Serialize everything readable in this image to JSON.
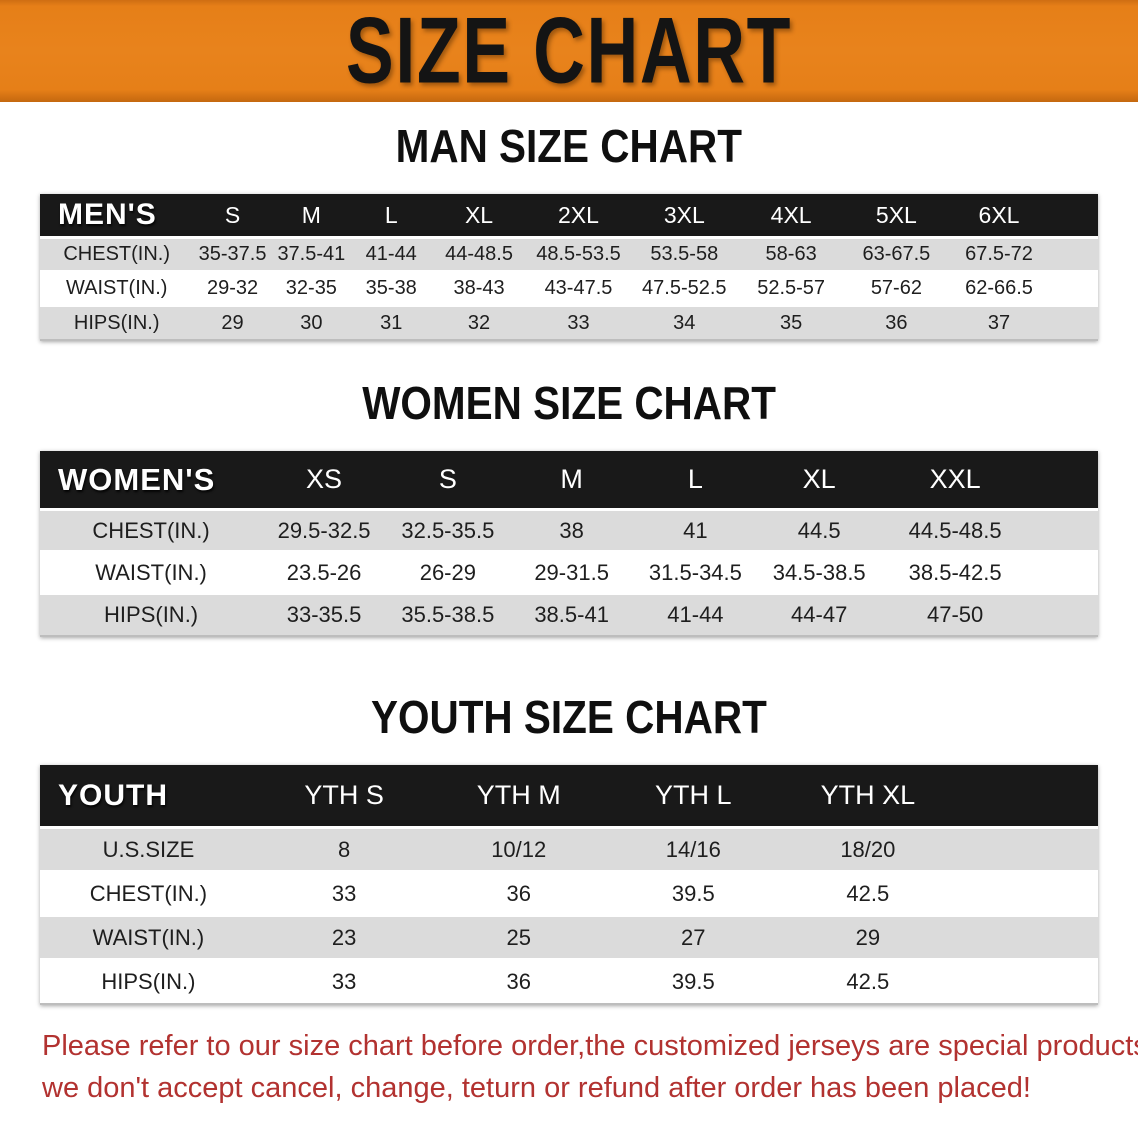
{
  "banner": {
    "title": "SIZE CHART"
  },
  "colors": {
    "banner_orange": "#E67F18",
    "table_header_black": "#191919",
    "row_stripe_gray": "#DBDBDB",
    "note_red": "#B23230"
  },
  "sections": [
    {
      "title": "MAN SIZE CHART",
      "header_label": "MEN'S",
      "columns": [
        "S",
        "M",
        "L",
        "XL",
        "2XL",
        "3XL",
        "4XL",
        "5XL",
        "6XL"
      ],
      "rows": [
        {
          "label": "CHEST(IN.)",
          "values": [
            "35-37.5",
            "37.5-41",
            "41-44",
            "44-48.5",
            "48.5-53.5",
            "53.5-58",
            "58-63",
            "63-67.5",
            "67.5-72"
          ]
        },
        {
          "label": "WAIST(IN.)",
          "values": [
            "29-32",
            "32-35",
            "35-38",
            "38-43",
            "43-47.5",
            "47.5-52.5",
            "52.5-57",
            "57-62",
            "62-66.5"
          ]
        },
        {
          "label": "HIPS(IN.)",
          "values": [
            "29",
            "30",
            "31",
            "32",
            "33",
            "34",
            "35",
            "36",
            "37"
          ]
        }
      ]
    },
    {
      "title": "WOMEN SIZE CHART",
      "header_label": "WOMEN'S",
      "columns": [
        "XS",
        "S",
        "M",
        "L",
        "XL",
        "XXL"
      ],
      "rows": [
        {
          "label": "CHEST(IN.)",
          "values": [
            "29.5-32.5",
            "32.5-35.5",
            "38",
            "41",
            "44.5",
            "44.5-48.5"
          ]
        },
        {
          "label": "WAIST(IN.)",
          "values": [
            "23.5-26",
            "26-29",
            "29-31.5",
            "31.5-34.5",
            "34.5-38.5",
            "38.5-42.5"
          ]
        },
        {
          "label": "HIPS(IN.)",
          "values": [
            "33-35.5",
            "35.5-38.5",
            "38.5-41",
            "41-44",
            "44-47",
            "47-50"
          ]
        }
      ]
    },
    {
      "title": "YOUTH SIZE CHART",
      "header_label": "YOUTH",
      "columns": [
        "YTH S",
        "YTH M",
        "YTH L",
        "YTH XL"
      ],
      "rows": [
        {
          "label": "U.S.SIZE",
          "values": [
            "8",
            "10/12",
            "14/16",
            "18/20"
          ]
        },
        {
          "label": "CHEST(IN.)",
          "values": [
            "33",
            "36",
            "39.5",
            "42.5"
          ]
        },
        {
          "label": "WAIST(IN.)",
          "values": [
            "23",
            "25",
            "27",
            "29"
          ]
        },
        {
          "label": "HIPS(IN.)",
          "values": [
            "33",
            "36",
            "39.5",
            "42.5"
          ]
        }
      ]
    }
  ],
  "footer": {
    "line1": "Please refer to our size chart before order,the customized jerseys are special products,",
    "line2": "we don't accept cancel, change, teturn or refund after order has been placed!"
  }
}
